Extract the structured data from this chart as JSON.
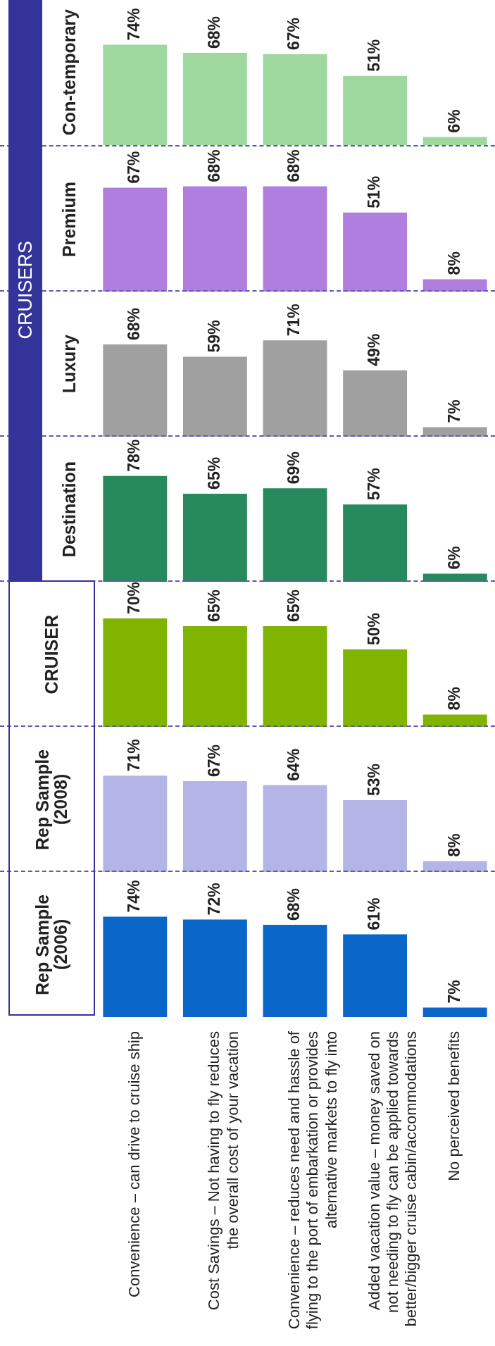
{
  "chart_data": [
    {
      "type": "bar",
      "title": "Con-temporary",
      "categories": [
        null,
        null,
        null,
        null,
        null
      ],
      "values": [
        74,
        68,
        67,
        51,
        6
      ],
      "value_labels": [
        "74%",
        "68%",
        "67%",
        "51%",
        "6%"
      ],
      "color": "#9ed89e",
      "tick_labels": false
    },
    {
      "type": "bar",
      "title": "Premium",
      "categories": [
        null,
        null,
        null,
        null,
        null
      ],
      "values": [
        67,
        68,
        68,
        51,
        8
      ],
      "value_labels": [
        "67%",
        "68%",
        "68%",
        "51%",
        "8%"
      ],
      "color": "#b07ede",
      "tick_labels": false
    },
    {
      "type": "bar",
      "title": "Luxury",
      "categories": [
        null,
        null,
        null,
        null,
        null
      ],
      "values": [
        68,
        59,
        71,
        49,
        7
      ],
      "value_labels": [
        "68%",
        "59%",
        "71%",
        "49%",
        "7%"
      ],
      "color": "#a0a0a0",
      "tick_labels": false
    },
    {
      "type": "bar",
      "title": "Destination",
      "categories": [
        null,
        null,
        null,
        null,
        null
      ],
      "values": [
        78,
        65,
        69,
        57,
        6
      ],
      "value_labels": [
        "78%",
        "65%",
        "69%",
        "57%",
        "6%"
      ],
      "color": "#268a5c",
      "tick_labels": false,
      "annotations": [
        "CRUISERS"
      ]
    },
    {
      "type": "bar",
      "title": "CRUISER",
      "categories": [
        null,
        null,
        null,
        null,
        null
      ],
      "values": [
        70,
        65,
        65,
        50,
        8
      ],
      "value_labels": [
        "70%",
        "65%",
        "65%",
        "50%",
        "8%"
      ],
      "color": "#80b400",
      "tick_labels": false
    },
    {
      "type": "bar",
      "title": "Rep Sample (2008)",
      "categories": [
        null,
        null,
        null,
        null,
        null
      ],
      "values": [
        71,
        67,
        64,
        53,
        8
      ],
      "value_labels": [
        "71%",
        "67%",
        "64%",
        "53%",
        "8%"
      ],
      "color": "#b4b4e6",
      "tick_labels": false
    },
    {
      "type": "bar",
      "title": "Rep Sample (2006)",
      "categories": [
        "Convenience – can drive to cruise ship",
        "Cost Savings – Not having to fly reduces the overall cost of your vacation",
        "Convenience – reduces need and hassle of flying to the port of embarkation or provides alternative markets to fly into",
        "Added vacation value – money saved on not needing to fly can be applied towards better/bigger cruise cabin/accommodations",
        "No perceived benefits"
      ],
      "values": [
        74,
        72,
        68,
        61,
        7
      ],
      "value_labels": [
        "74%",
        "72%",
        "68%",
        "61%",
        "7%"
      ],
      "color": "#0a66c8",
      "tick_labels": "x"
    }
  ]
}
